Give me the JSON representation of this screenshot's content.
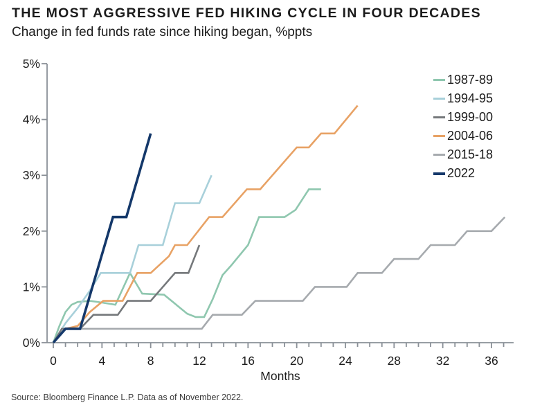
{
  "header": {
    "title": "THE MOST AGGRESSIVE FED HIKING CYCLE IN FOUR DECADES",
    "subtitle": "Change in fed funds rate since hiking began, %ppts"
  },
  "footer": {
    "source": "Source: Bloomberg Finance L.P. Data as of November 2022."
  },
  "chart_data": {
    "type": "line",
    "title": "THE MOST AGGRESSIVE FED HIKING CYCLE IN FOUR DECADES",
    "subtitle": "Change in fed funds rate since hiking began, %ppts",
    "xlabel": "Months",
    "ylabel": "",
    "xlim": [
      0,
      37.5
    ],
    "ylim": [
      0,
      5
    ],
    "grid": false,
    "legend_position": "top-right-inside",
    "x_ticks": [
      0,
      4,
      8,
      12,
      16,
      20,
      24,
      28,
      32,
      36
    ],
    "x_minor_tick_step": 1,
    "x_minor_tick_max": 37,
    "y_tick_values": [
      0,
      1,
      2,
      3,
      4,
      5
    ],
    "y_tick_labels": [
      "0%",
      "1%",
      "2%",
      "3%",
      "4%",
      "5%"
    ],
    "axis_color": "#8a9097",
    "series": [
      {
        "name": "1987-89",
        "color": "#8FC7AF",
        "width": 2.6,
        "points": [
          [
            0,
            0
          ],
          [
            0.5,
            0.3
          ],
          [
            1,
            0.55
          ],
          [
            1.5,
            0.68
          ],
          [
            2,
            0.73
          ],
          [
            3,
            0.75
          ],
          [
            4,
            0.72
          ],
          [
            5.1,
            0.68
          ],
          [
            6.3,
            1.25
          ],
          [
            7.3,
            0.88
          ],
          [
            9.1,
            0.86
          ],
          [
            11,
            0.52
          ],
          [
            11.7,
            0.46
          ],
          [
            12.4,
            0.46
          ],
          [
            13.1,
            0.78
          ],
          [
            13.9,
            1.21
          ],
          [
            14.6,
            1.38
          ],
          [
            16,
            1.75
          ],
          [
            16.9,
            2.25
          ],
          [
            19,
            2.25
          ],
          [
            19.9,
            2.38
          ],
          [
            21,
            2.75
          ],
          [
            22,
            2.75
          ]
        ]
      },
      {
        "name": "1994-95",
        "color": "#A8D0DA",
        "width": 2.6,
        "points": [
          [
            0,
            0
          ],
          [
            1,
            0.35
          ],
          [
            2,
            0.62
          ],
          [
            3,
            0.93
          ],
          [
            3.9,
            1.25
          ],
          [
            6.3,
            1.25
          ],
          [
            7,
            1.75
          ],
          [
            9,
            1.75
          ],
          [
            10,
            2.5
          ],
          [
            12,
            2.5
          ],
          [
            13,
            3.0
          ]
        ]
      },
      {
        "name": "1999-00",
        "color": "#75787B",
        "width": 2.6,
        "points": [
          [
            0,
            0
          ],
          [
            0.7,
            0.25
          ],
          [
            2.2,
            0.25
          ],
          [
            3.3,
            0.5
          ],
          [
            5.3,
            0.5
          ],
          [
            6.1,
            0.75
          ],
          [
            8,
            0.75
          ],
          [
            10,
            1.25
          ],
          [
            11.1,
            1.25
          ],
          [
            12,
            1.75
          ]
        ]
      },
      {
        "name": "2004-06",
        "color": "#E8A265",
        "width": 2.6,
        "points": [
          [
            0,
            0
          ],
          [
            1,
            0.25
          ],
          [
            2,
            0.3
          ],
          [
            3,
            0.55
          ],
          [
            4.1,
            0.75
          ],
          [
            5.7,
            0.75
          ],
          [
            6.9,
            1.25
          ],
          [
            8,
            1.25
          ],
          [
            9.5,
            1.55
          ],
          [
            10,
            1.75
          ],
          [
            11,
            1.75
          ],
          [
            12.8,
            2.25
          ],
          [
            13.9,
            2.25
          ],
          [
            15.9,
            2.75
          ],
          [
            17,
            2.75
          ],
          [
            20,
            3.5
          ],
          [
            21,
            3.5
          ],
          [
            22,
            3.75
          ],
          [
            23.1,
            3.75
          ],
          [
            25,
            4.25
          ]
        ]
      },
      {
        "name": "2015-18",
        "color": "#A6AAAE",
        "width": 2.6,
        "points": [
          [
            0,
            0
          ],
          [
            1,
            0.25
          ],
          [
            12.2,
            0.25
          ],
          [
            13.1,
            0.5
          ],
          [
            15.5,
            0.5
          ],
          [
            16.6,
            0.75
          ],
          [
            20.5,
            0.75
          ],
          [
            21.5,
            1.0
          ],
          [
            24.1,
            1.0
          ],
          [
            25,
            1.25
          ],
          [
            27,
            1.25
          ],
          [
            28,
            1.5
          ],
          [
            30,
            1.5
          ],
          [
            31,
            1.75
          ],
          [
            33,
            1.75
          ],
          [
            34,
            2.0
          ],
          [
            36,
            2.0
          ],
          [
            37.1,
            2.25
          ]
        ]
      },
      {
        "name": "2022",
        "color": "#14386A",
        "width": 3.6,
        "points": [
          [
            0,
            0
          ],
          [
            1,
            0.25
          ],
          [
            2.2,
            0.25
          ],
          [
            4.9,
            2.25
          ],
          [
            6,
            2.25
          ],
          [
            8,
            3.75
          ]
        ]
      }
    ]
  }
}
